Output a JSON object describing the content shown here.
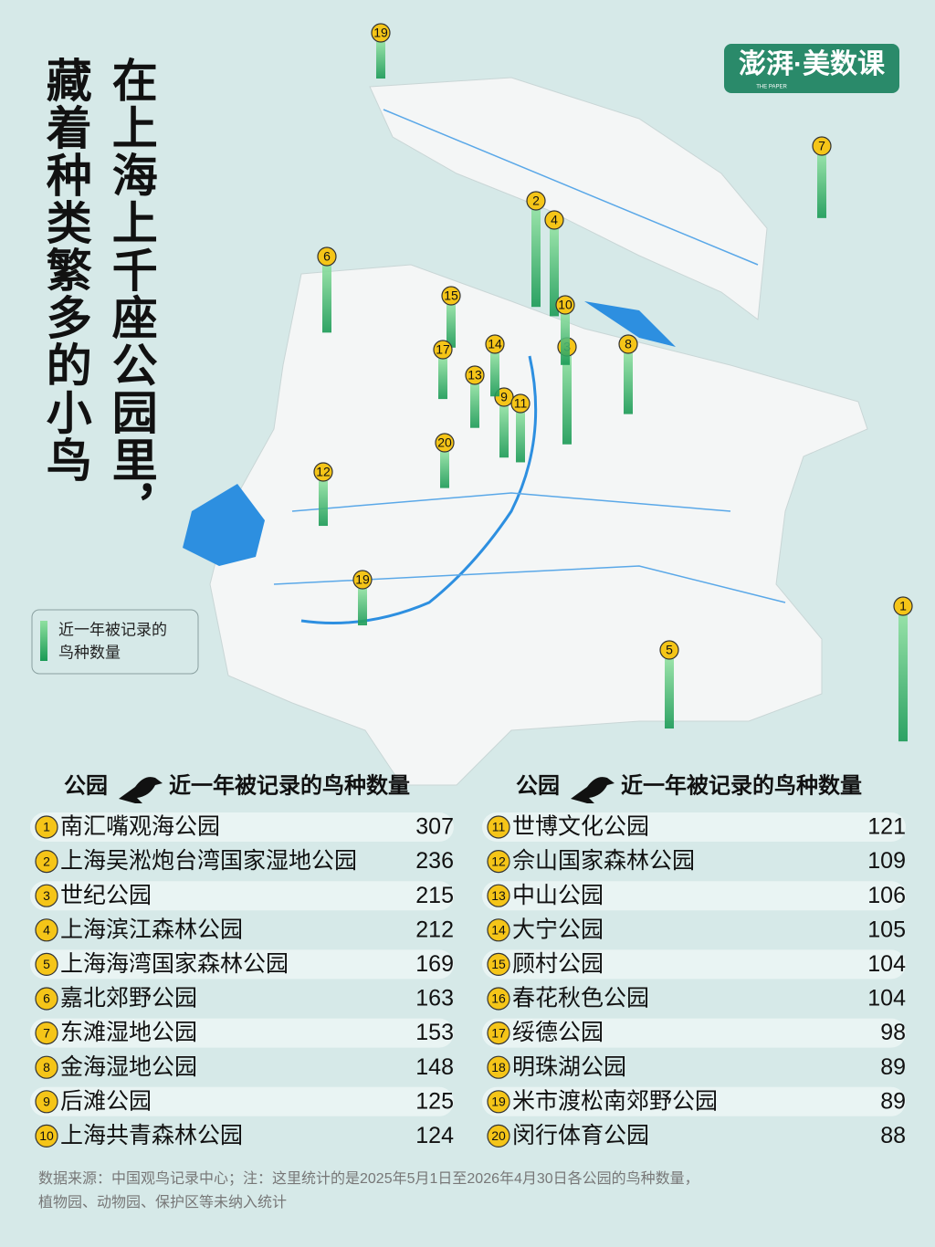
{
  "header": {
    "title_lines": [
      "在上海上千座公园里，",
      "藏着种类繁多的小鸟"
    ],
    "logo": "澎湃·美数课",
    "logo_sub": "THE PAPER"
  },
  "legend": {
    "lines": [
      "近一年被记录的",
      "鸟种数量"
    ]
  },
  "table": {
    "columns": [
      {
        "park": "公园",
        "count": "近一年被记录的鸟种数量"
      },
      {
        "park": "公园",
        "count": "近一年被记录的鸟种数量"
      }
    ],
    "parks": [
      {
        "rank": 1,
        "name": "南汇嘴观海公园",
        "count": 307
      },
      {
        "rank": 2,
        "name": "上海吴淞炮台湾国家湿地公园",
        "count": 236
      },
      {
        "rank": 3,
        "name": "世纪公园",
        "count": 215
      },
      {
        "rank": 4,
        "name": "上海滨江森林公园",
        "count": 212
      },
      {
        "rank": 5,
        "name": "上海海湾国家森林公园",
        "count": 169
      },
      {
        "rank": 6,
        "name": "嘉北郊野公园",
        "count": 163
      },
      {
        "rank": 7,
        "name": "东滩湿地公园",
        "count": 153
      },
      {
        "rank": 8,
        "name": "金海湿地公园",
        "count": 148
      },
      {
        "rank": 9,
        "name": "后滩公园",
        "count": 125
      },
      {
        "rank": 10,
        "name": "上海共青森林公园",
        "count": 124
      },
      {
        "rank": 11,
        "name": "世博文化公园",
        "count": 121
      },
      {
        "rank": 12,
        "name": "佘山国家森林公园",
        "count": 109
      },
      {
        "rank": 13,
        "name": "中山公园",
        "count": 106
      },
      {
        "rank": 14,
        "name": "大宁公园",
        "count": 105
      },
      {
        "rank": 15,
        "name": "顾村公园",
        "count": 104
      },
      {
        "rank": 16,
        "name": "春花秋色公园",
        "count": 104
      },
      {
        "rank": 17,
        "name": "绥德公园",
        "count": 98
      },
      {
        "rank": 18,
        "name": "明珠湖公园",
        "count": 89
      },
      {
        "rank": 19,
        "name": "米市渡松南郊野公园",
        "count": 89
      },
      {
        "rank": 20,
        "name": "闵行体育公园",
        "count": 88
      }
    ]
  },
  "footer": {
    "lines": [
      "数据来源：中国观鸟记录中心；注：这里统计的是2025年5月1日至2026年4月30日各公园的鸟种数量，",
      "植物园、动物园、保护区等未纳入统计"
    ]
  }
}
